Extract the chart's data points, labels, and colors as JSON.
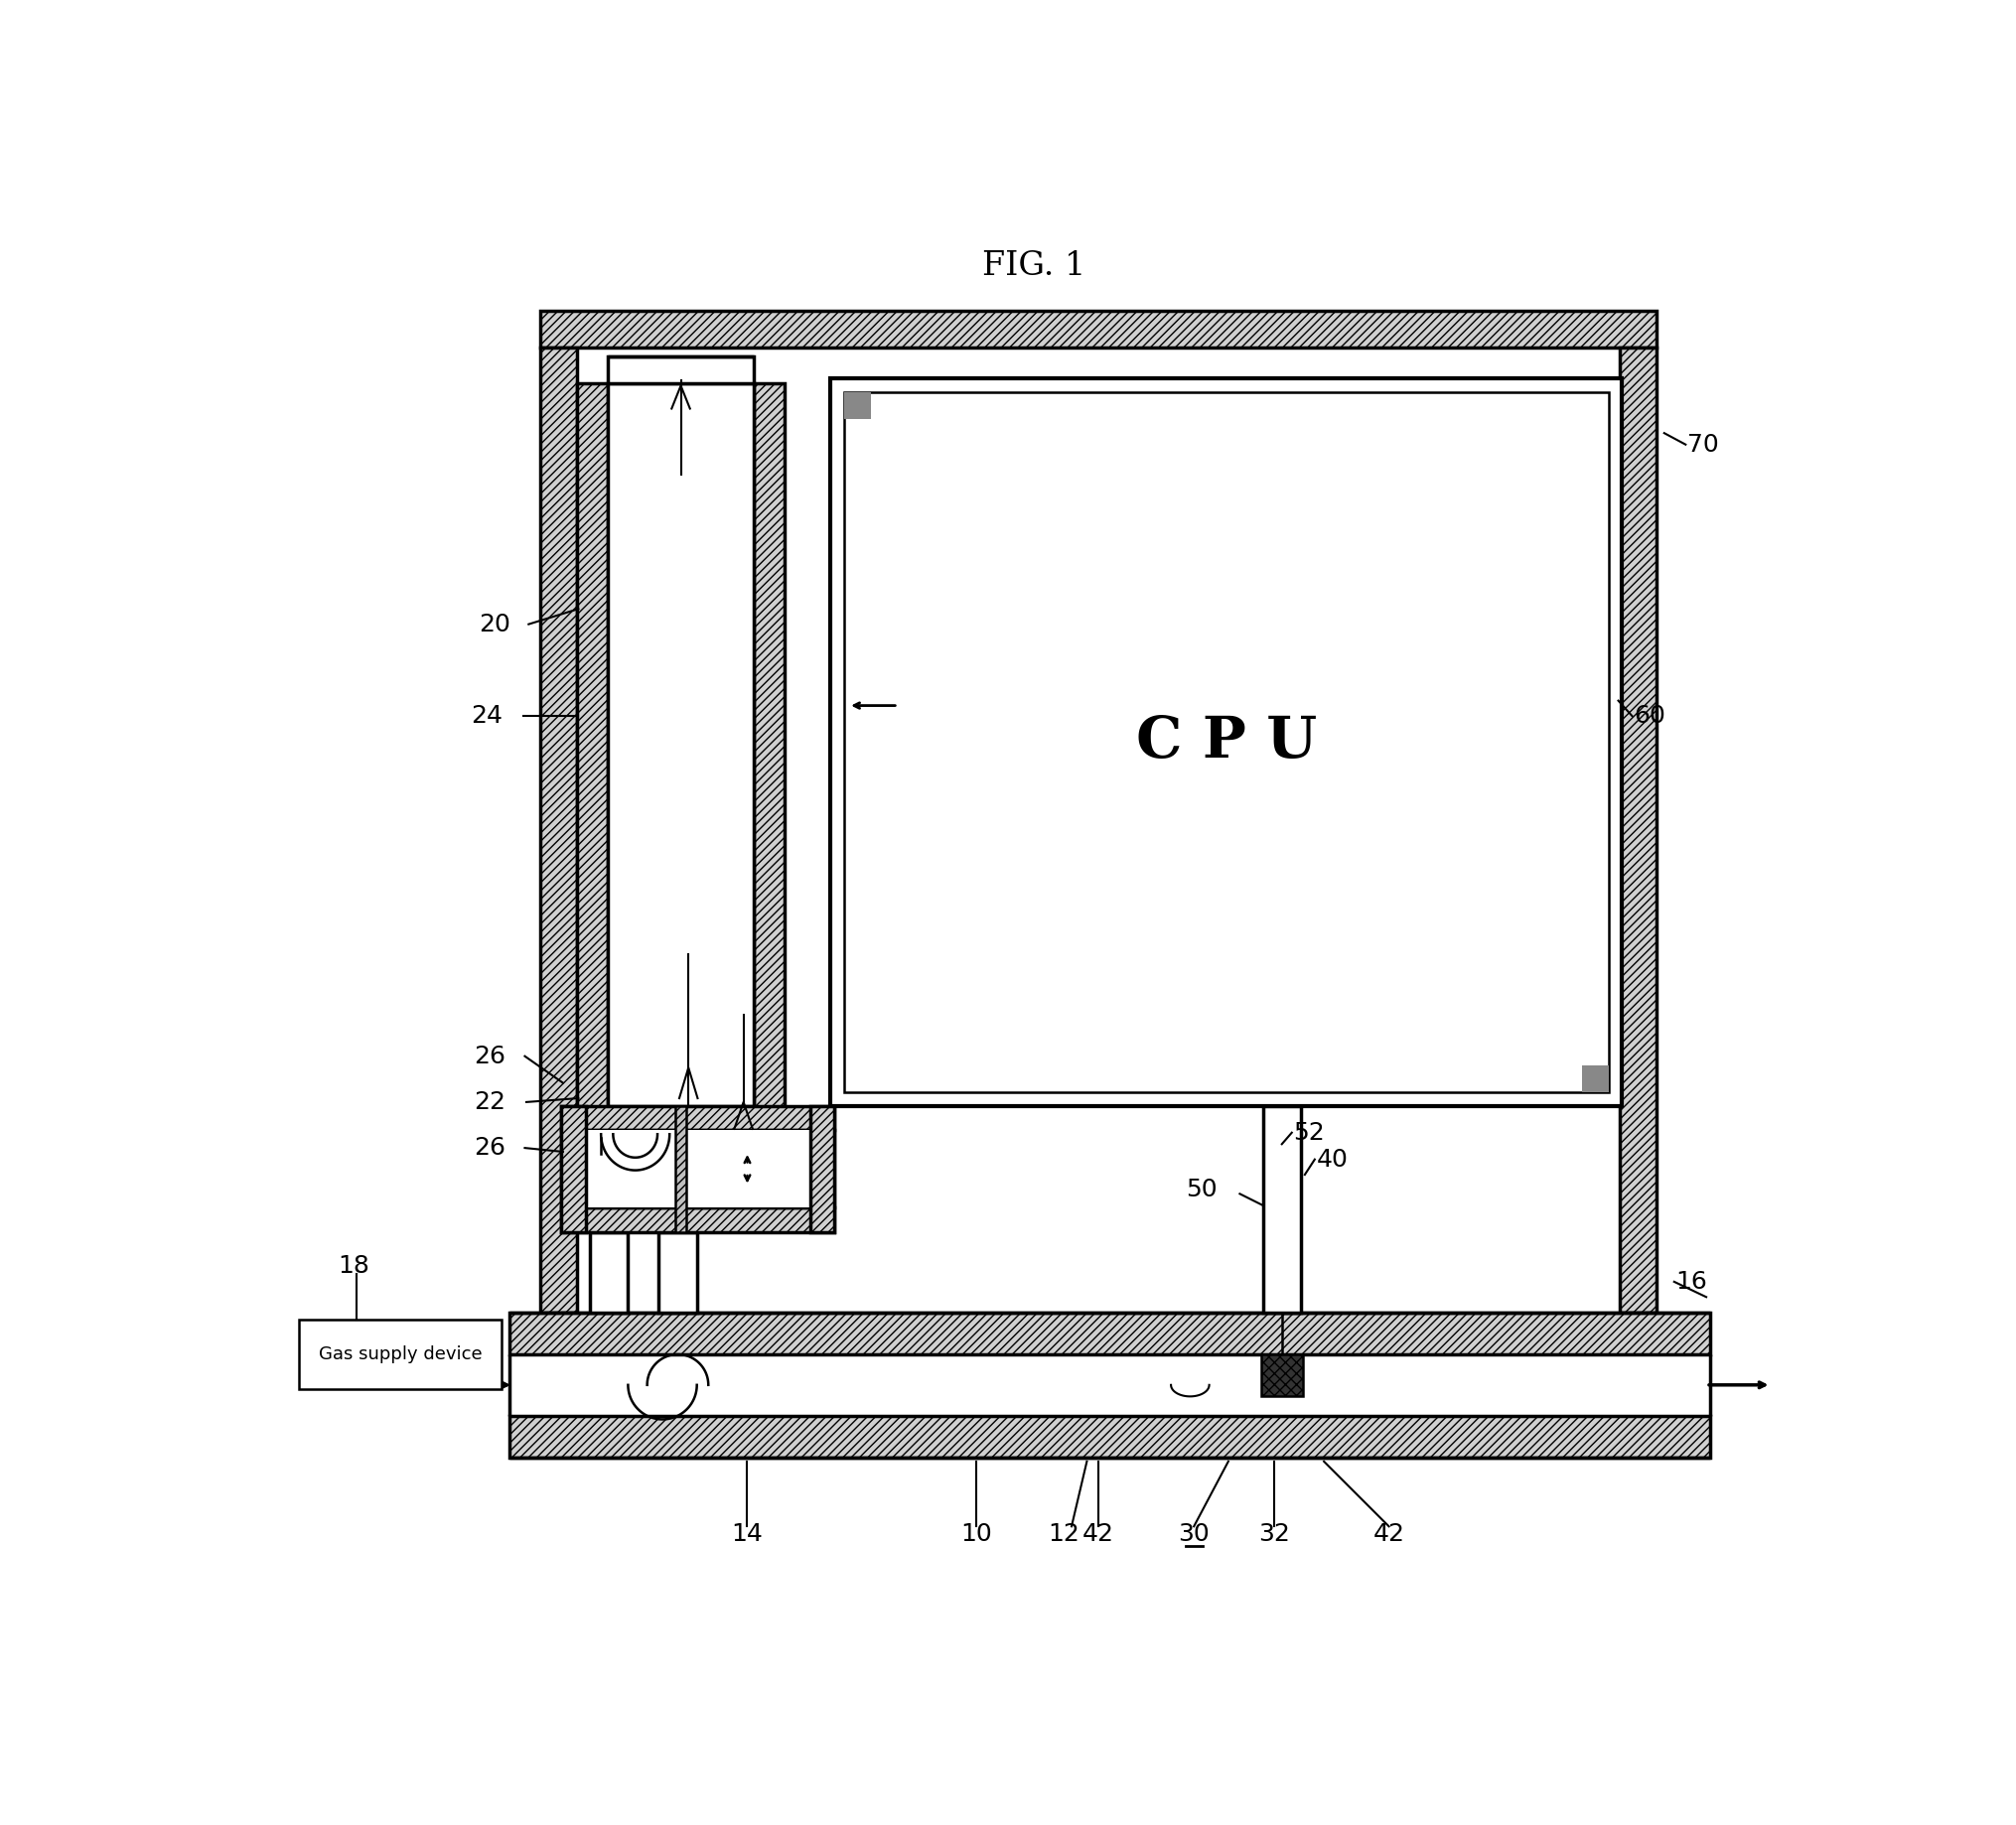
{
  "title": "FIG. 1",
  "title_fontsize": 24,
  "bg_color": "#ffffff",
  "line_color": "#000000",
  "hatch_gray": "#cccccc",
  "cpu_text": "C P U",
  "gas_supply_text": "Gas supply device",
  "label_fontsize": 18,
  "cpu_fontsize": 42
}
